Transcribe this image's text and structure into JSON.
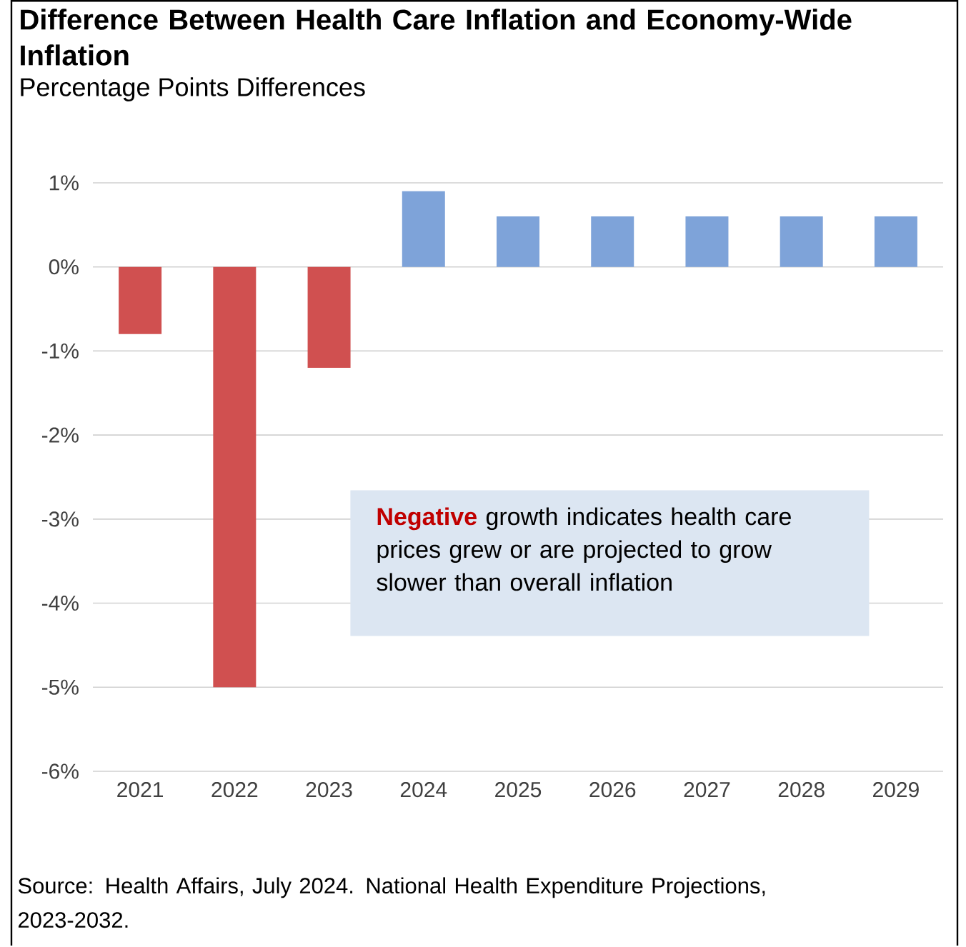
{
  "chart_data": {
    "type": "bar",
    "title": "Difference Between Health Care Inflation and Economy-Wide Inflation",
    "subtitle": "Percentage Points Differences",
    "categories": [
      "2021",
      "2022",
      "2023",
      "2024",
      "2025",
      "2026",
      "2027",
      "2028",
      "2029"
    ],
    "values": [
      -0.8,
      -5.0,
      -1.2,
      0.9,
      0.6,
      0.6,
      0.6,
      0.6,
      0.6
    ],
    "colors": [
      "#d05050",
      "#d05050",
      "#d05050",
      "#7ea3d9",
      "#7ea3d9",
      "#7ea3d9",
      "#7ea3d9",
      "#7ea3d9",
      "#7ea3d9"
    ],
    "ylim": [
      -6,
      1
    ],
    "yticks": [
      {
        "value": -6,
        "label": "-6%"
      },
      {
        "value": -5,
        "label": "-5%"
      },
      {
        "value": -4,
        "label": "-4%"
      },
      {
        "value": -3,
        "label": "-3%"
      },
      {
        "value": -2,
        "label": "-2%"
      },
      {
        "value": -1,
        "label": "-1%"
      },
      {
        "value": 0,
        "label": "0%"
      },
      {
        "value": 1,
        "label": "1%"
      }
    ],
    "grid": "y",
    "annotations": [
      "Negative",
      "growth indicates health care prices grew or are projected to grow slower than overall inflation",
      "Source: Health Affairs, July 2024. National Health Expenditure Projections, 2023-2032."
    ]
  }
}
